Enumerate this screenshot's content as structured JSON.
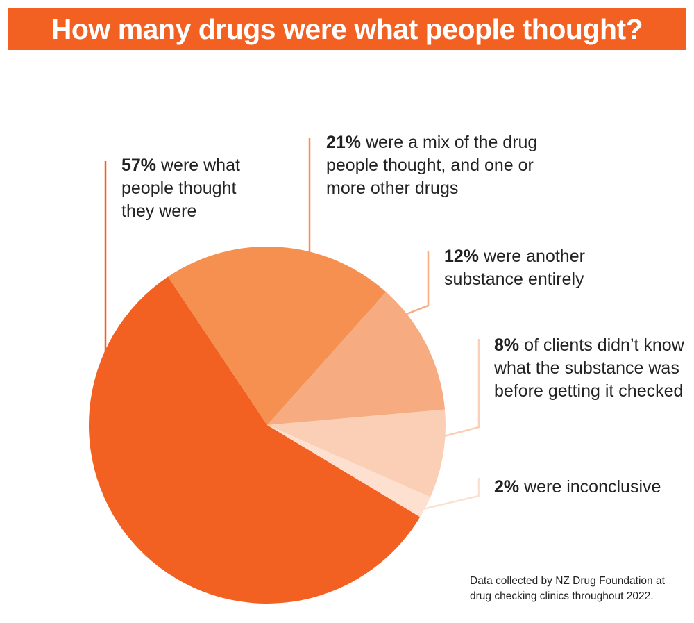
{
  "chart_data": {
    "type": "pie",
    "title": "How many drugs were what people thought?",
    "categories": [
      "were what people thought they were",
      "were a mix of the drug people thought, and one or more other drugs",
      "were another substance entirely",
      "of clients didn’t know what the substance was before getting it checked",
      "were inconclusive"
    ],
    "values": [
      57,
      21,
      12,
      8,
      2
    ],
    "value_labels": [
      "57%",
      "21%",
      "12%",
      "8%",
      "2%"
    ],
    "colors": [
      "#f26122",
      "#f59050",
      "#f7ab80",
      "#fbcfb5",
      "#fde0cf"
    ],
    "note": "Data collected by NZ Drug Foundation at drug checking clinics throughout 2022."
  }
}
